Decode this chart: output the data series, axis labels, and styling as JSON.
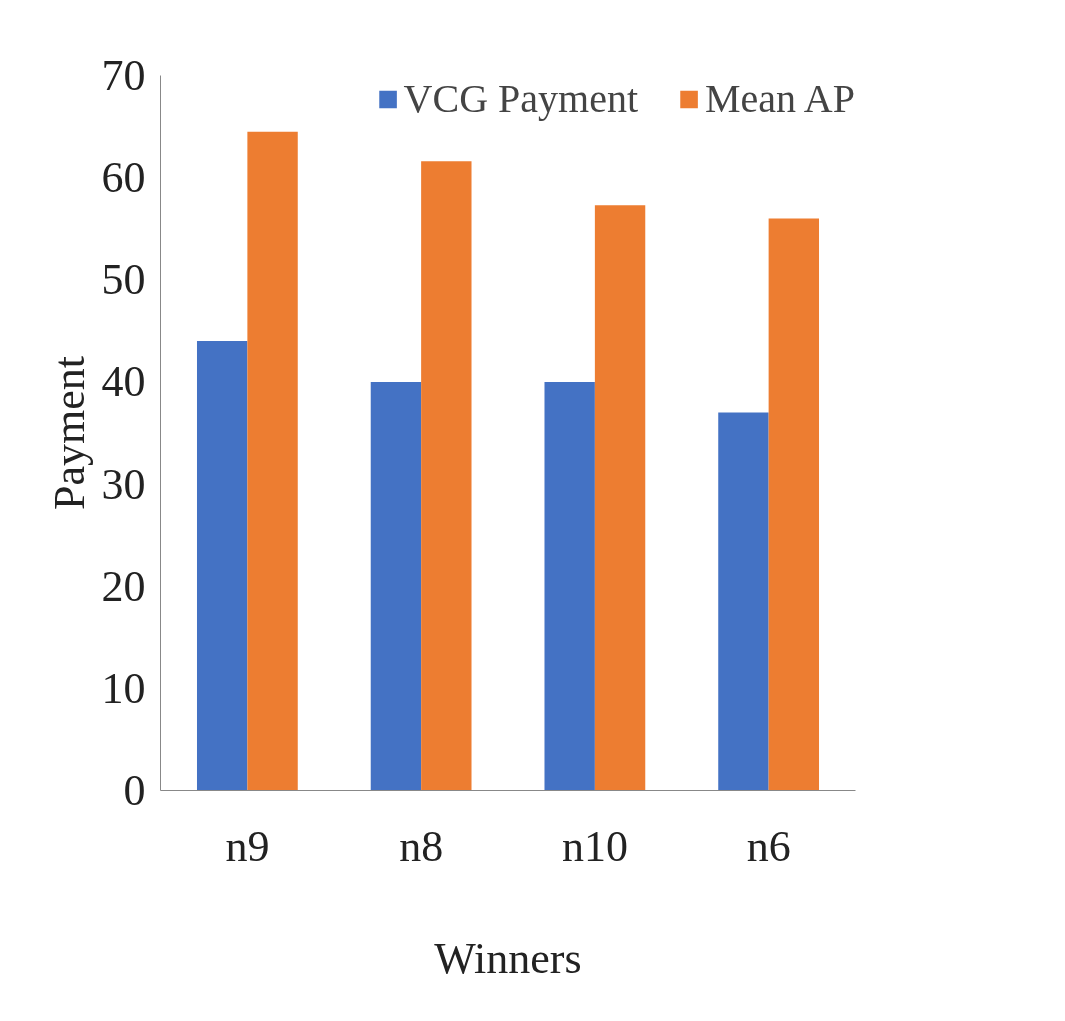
{
  "chart_data": {
    "type": "bar",
    "xlabel": "Winners",
    "ylabel": "Payment",
    "categories": [
      "n9",
      "n8",
      "n10",
      "n6"
    ],
    "series": [
      {
        "name": "VCG Payment",
        "color": "#4472c4",
        "values": [
          44,
          40,
          40,
          37
        ]
      },
      {
        "name": "Mean AP",
        "color": "#ed7d31",
        "values": [
          64.5,
          61.6,
          57.3,
          56
        ]
      }
    ],
    "ylim": [
      0,
      70
    ],
    "yticks": [
      0,
      10,
      20,
      30,
      40,
      50,
      60,
      70
    ],
    "legend": "top right"
  }
}
